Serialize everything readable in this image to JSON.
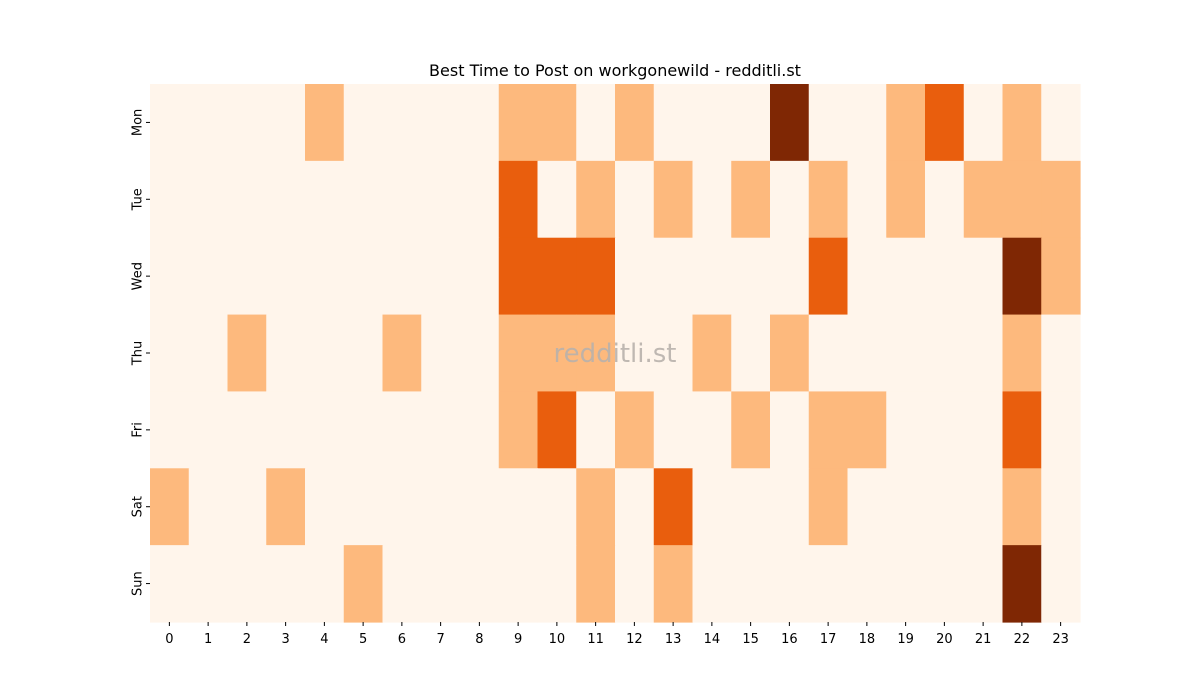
{
  "chart_data": {
    "type": "heatmap",
    "title": "Best Time to Post on workgonewild - redditli.st",
    "watermark": "redditli.st",
    "x_ticks": [
      "0",
      "1",
      "2",
      "3",
      "4",
      "5",
      "6",
      "7",
      "8",
      "9",
      "10",
      "11",
      "12",
      "13",
      "14",
      "15",
      "16",
      "17",
      "18",
      "19",
      "20",
      "21",
      "22",
      "23"
    ],
    "y_ticks": [
      "Mon",
      "Tue",
      "Wed",
      "Thu",
      "Fri",
      "Sat",
      "Sun"
    ],
    "colorscale": "Oranges",
    "colorbar": false,
    "grid": false,
    "color_levels": [
      "#fff5eb",
      "#fdb97d",
      "#e95e0d",
      "#7f2704"
    ],
    "values": [
      [
        0,
        0,
        0,
        0,
        1,
        0,
        0,
        0,
        0,
        1,
        1,
        0,
        1,
        0,
        0,
        0,
        3,
        0,
        0,
        1,
        2,
        0,
        1,
        0
      ],
      [
        0,
        0,
        0,
        0,
        0,
        0,
        0,
        0,
        0,
        2,
        0,
        1,
        0,
        1,
        0,
        1,
        0,
        1,
        0,
        1,
        0,
        1,
        1,
        1
      ],
      [
        0,
        0,
        0,
        0,
        0,
        0,
        0,
        0,
        0,
        2,
        2,
        2,
        0,
        0,
        0,
        0,
        0,
        2,
        0,
        0,
        0,
        0,
        3,
        1
      ],
      [
        0,
        0,
        1,
        0,
        0,
        0,
        1,
        0,
        0,
        1,
        1,
        1,
        0,
        0,
        1,
        0,
        1,
        0,
        0,
        0,
        0,
        0,
        1,
        0
      ],
      [
        0,
        0,
        0,
        0,
        0,
        0,
        0,
        0,
        0,
        1,
        2,
        0,
        1,
        0,
        0,
        1,
        0,
        1,
        1,
        0,
        0,
        0,
        2,
        0
      ],
      [
        1,
        0,
        0,
        1,
        0,
        0,
        0,
        0,
        0,
        0,
        0,
        1,
        0,
        2,
        0,
        0,
        0,
        1,
        0,
        0,
        0,
        0,
        1,
        0
      ],
      [
        0,
        0,
        0,
        0,
        0,
        1,
        0,
        0,
        0,
        0,
        0,
        1,
        0,
        1,
        0,
        0,
        0,
        0,
        0,
        0,
        0,
        0,
        3,
        0
      ]
    ]
  }
}
